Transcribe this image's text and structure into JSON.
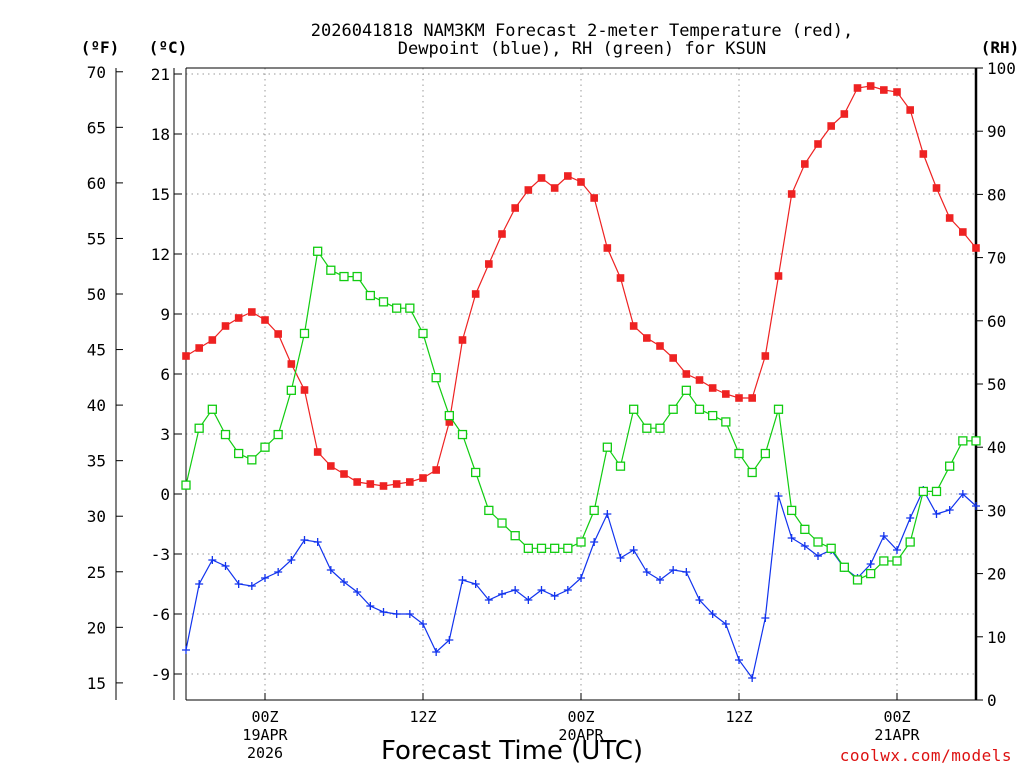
{
  "title": {
    "line1": "2026041818 NAM3KM Forecast 2-meter Temperature (red),",
    "line2": "Dewpoint (blue), RH (green) for KSUN"
  },
  "units": {
    "left_f": "(ºF)",
    "left_c": "(ºC)",
    "right_rh": "(RH)"
  },
  "xlabel": "Forecast Time (UTC)",
  "watermark": "coolwx.com/models",
  "colors": {
    "temp": "#ee2222",
    "dewpoint": "#1133ee",
    "rh": "#11cc11",
    "axis": "#000000"
  },
  "chart_data": {
    "type": "line",
    "x_units": "hours since 2026-04-18 18Z",
    "xlim": [
      0,
      60
    ],
    "x_ticks": [
      {
        "x": 6,
        "lines": [
          "00Z",
          "19APR",
          "2026"
        ]
      },
      {
        "x": 18,
        "lines": [
          "12Z"
        ]
      },
      {
        "x": 30,
        "lines": [
          "00Z",
          "20APR"
        ]
      },
      {
        "x": 42,
        "lines": [
          "12Z"
        ]
      },
      {
        "x": 54,
        "lines": [
          "00Z",
          "21APR"
        ]
      }
    ],
    "y_celsius": {
      "ylim": [
        -10.3,
        21.3
      ],
      "ticks": [
        21,
        18,
        15,
        12,
        9,
        6,
        3,
        0,
        -3,
        -6,
        -9
      ]
    },
    "y_fahrenheit": {
      "ticks": [
        70,
        65,
        60,
        55,
        50,
        45,
        40,
        35,
        30,
        25,
        20,
        15
      ]
    },
    "y_rh": {
      "ylim": [
        0,
        100
      ],
      "ticks": [
        100,
        90,
        80,
        70,
        60,
        50,
        40,
        30,
        20,
        10,
        0
      ]
    },
    "series": [
      {
        "name": "Temperature",
        "axis": "celsius",
        "color": "#ee2222",
        "marker": "filled-square",
        "values": [
          6.9,
          7.3,
          7.7,
          8.4,
          8.8,
          9.1,
          8.7,
          8.0,
          6.5,
          5.2,
          2.1,
          1.4,
          1.0,
          0.6,
          0.5,
          0.4,
          0.5,
          0.6,
          0.8,
          1.2,
          3.6,
          7.7,
          10.0,
          11.5,
          13.0,
          14.3,
          15.2,
          15.8,
          15.3,
          15.9,
          15.6,
          14.8,
          12.3,
          10.8,
          8.4,
          7.8,
          7.4,
          6.8,
          6.0,
          5.7,
          5.3,
          5.0,
          4.8,
          4.8,
          6.9,
          10.9,
          15.0,
          16.5,
          17.5,
          18.4,
          19.0,
          20.3,
          20.4,
          20.2,
          20.1,
          19.2,
          17.0,
          15.3,
          13.8,
          13.1,
          12.3
        ]
      },
      {
        "name": "Dewpoint",
        "axis": "celsius",
        "color": "#1133ee",
        "marker": "plus",
        "values": [
          -7.8,
          -4.5,
          -3.3,
          -3.6,
          -4.5,
          -4.6,
          -4.2,
          -3.9,
          -3.3,
          -2.3,
          -2.4,
          -3.8,
          -4.4,
          -4.9,
          -5.6,
          -5.9,
          -6.0,
          -6.0,
          -6.5,
          -7.9,
          -7.3,
          -4.3,
          -4.5,
          -5.3,
          -5.0,
          -4.8,
          -5.3,
          -4.8,
          -5.1,
          -4.8,
          -4.2,
          -2.4,
          -1.0,
          -3.2,
          -2.8,
          -3.9,
          -4.3,
          -3.8,
          -3.9,
          -5.3,
          -6.0,
          -6.5,
          -8.3,
          -9.2,
          -6.2,
          -0.1,
          -2.2,
          -2.6,
          -3.1,
          -2.8,
          -3.7,
          -4.2,
          -3.5,
          -2.1,
          -2.8,
          -1.2,
          0.2,
          -1.0,
          -0.8,
          0.0,
          -0.6
        ]
      },
      {
        "name": "RH",
        "axis": "rh",
        "color": "#11cc11",
        "marker": "open-square",
        "values": [
          34,
          43,
          46,
          42,
          39,
          38,
          40,
          42,
          49,
          58,
          71,
          68,
          67,
          67,
          64,
          63,
          62,
          62,
          58,
          51,
          45,
          42,
          36,
          30,
          28,
          26,
          24,
          24,
          24,
          24,
          25,
          30,
          40,
          37,
          46,
          43,
          43,
          46,
          49,
          46,
          45,
          44,
          39,
          36,
          39,
          46,
          30,
          27,
          25,
          24,
          21,
          19,
          20,
          22,
          22,
          25,
          33,
          33,
          37,
          41,
          41
        ]
      }
    ]
  }
}
